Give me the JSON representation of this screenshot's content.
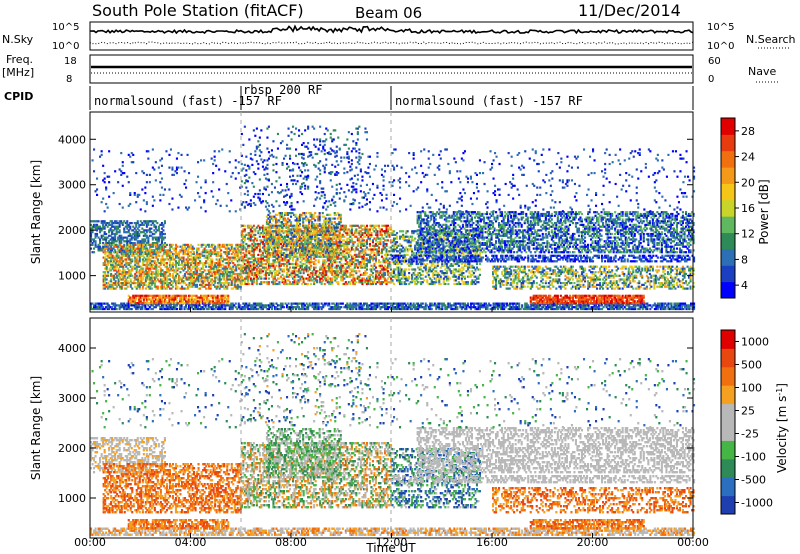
{
  "header": {
    "title": "South Pole Station (fitACF)",
    "beam": "Beam 06",
    "date": "11/Dec/2014"
  },
  "aux_panels": {
    "nsky_label": "N.Sky",
    "nsky_ticks": [
      "10^5",
      "10^0"
    ],
    "nsearch_label": "N.Search",
    "nsearch_ticks": [
      "10^5",
      "10^0"
    ],
    "freq_label_line1": "Freq.",
    "freq_label_line2": "[MHz]",
    "freq_ticks": [
      "18",
      "8"
    ],
    "nave_label": "Nave",
    "nave_ticks": [
      "60",
      "0"
    ],
    "cpid_label": "CPID",
    "cpid_segments": [
      {
        "text": "normalsound (fast) -157 RF",
        "start_hour": 0,
        "end_hour": 6
      },
      {
        "text": "rbsp 200 RF",
        "start_hour": 6,
        "end_hour": 12
      },
      {
        "text": "normalsound (fast) -157 RF",
        "start_hour": 12,
        "end_hour": 24
      }
    ]
  },
  "x_axis": {
    "label": "Time UT",
    "ticks": [
      "00:00",
      "04:00",
      "08:00",
      "12:00",
      "16:00",
      "20:00",
      "00:00"
    ],
    "range_hours": [
      0,
      24
    ]
  },
  "chart_data": [
    {
      "type": "heatmap",
      "panel": "power",
      "ylabel": "Slant Range [km]",
      "yticks": [
        1000,
        2000,
        3000,
        4000
      ],
      "ylim": [
        200,
        4600
      ],
      "xlim_hours": [
        0,
        24
      ],
      "colorbar_label": "Power [dB]",
      "colorbar_ticks": [
        "28",
        "24",
        "20",
        "16",
        "12",
        "8",
        "4"
      ],
      "colorbar_colors": [
        "#0000ff",
        "#1a3fc0",
        "#2c6fb5",
        "#2e8b57",
        "#5fb85f",
        "#c8d42a",
        "#f5c518",
        "#f59a18",
        "#f07010",
        "#e83c10",
        "#e00000"
      ],
      "colorbar_range": [
        0,
        30
      ]
    },
    {
      "type": "heatmap",
      "panel": "velocity",
      "ylabel": "Slant Range [km]",
      "yticks": [
        1000,
        2000,
        3000,
        4000
      ],
      "ylim": [
        200,
        4600
      ],
      "xlim_hours": [
        0,
        24
      ],
      "colorbar_label": "Velocity [m s^-1]",
      "colorbar_ticks": [
        "1000",
        "500",
        "100",
        "25",
        "-25",
        "-100",
        "-500",
        "-1000"
      ],
      "colorbar_colors": [
        "#1f3fb0",
        "#2c6fc0",
        "#2e8b57",
        "#45b545",
        "#b8b8b8",
        "#b8b8b8",
        "#f5a020",
        "#f07010",
        "#e84810",
        "#e00000"
      ],
      "colorbar_range": [
        -1000,
        1000
      ]
    }
  ]
}
